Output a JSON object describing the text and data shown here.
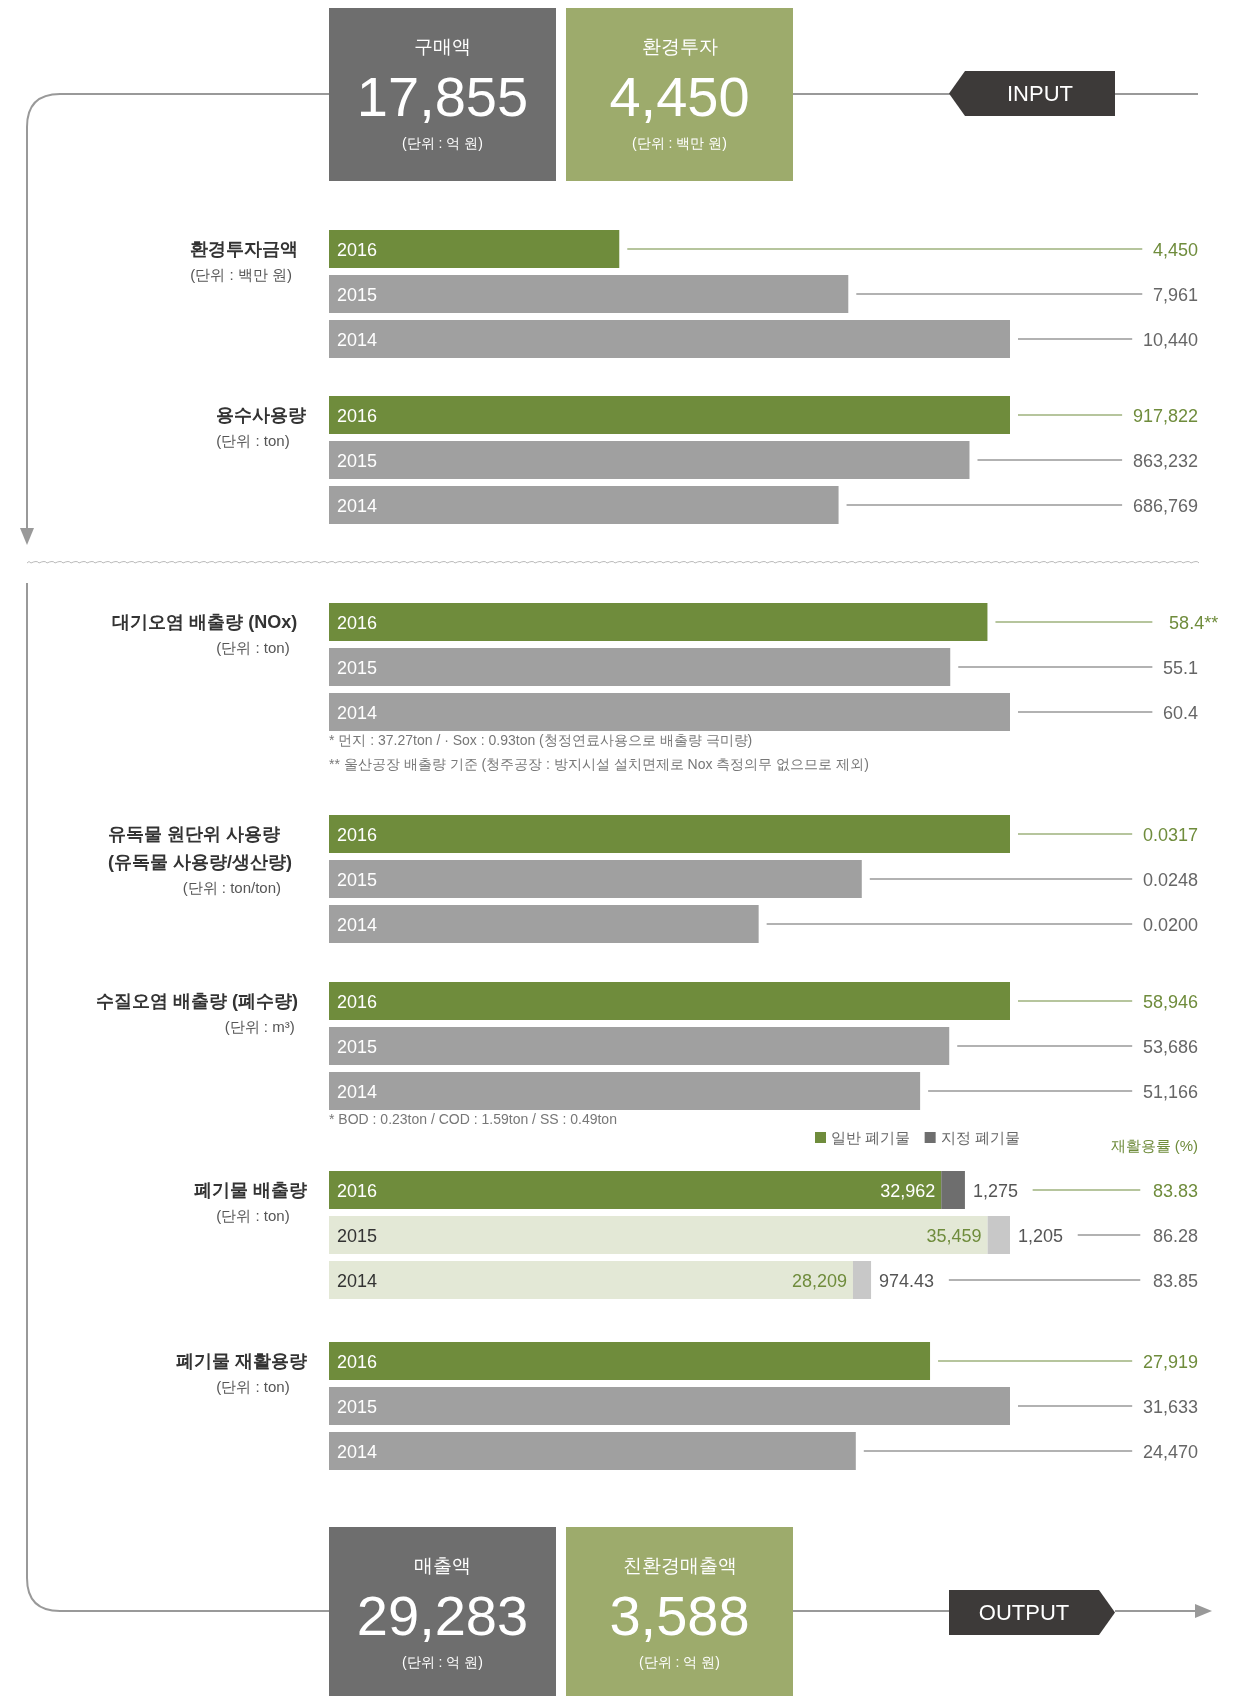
{
  "chart_data": [
    {
      "type": "other",
      "title": "구매액",
      "annotations": [
        "17,855",
        "(단위 : 억 원)"
      ]
    },
    {
      "type": "other",
      "title": "환경투자",
      "annotations": [
        "4,450",
        "(단위 : 백만 원)"
      ]
    },
    {
      "type": "other",
      "annotations": [
        "INPUT"
      ]
    },
    {
      "type": "bar",
      "orientation": "horizontal",
      "title": "환경투자금액",
      "subtitle": "(단위 : 백만 원)",
      "categories": [
        "2016",
        "2015",
        "2014"
      ],
      "values": [
        4450,
        7961,
        10440
      ],
      "colors": [
        "#6f8c3c",
        "#a0a0a0",
        "#a0a0a0"
      ],
      "value_labels": [
        "4,450",
        "7,961",
        "10,440"
      ],
      "xlim": [
        0,
        10440
      ]
    },
    {
      "type": "bar",
      "orientation": "horizontal",
      "title": "용수사용량",
      "subtitle": "(단위 : ton)",
      "categories": [
        "2016",
        "2015",
        "2014"
      ],
      "values": [
        917822,
        863232,
        686769
      ],
      "colors": [
        "#6f8c3c",
        "#a0a0a0",
        "#a0a0a0"
      ],
      "value_labels": [
        "917,822",
        "863,232",
        "686,769"
      ],
      "xlim": [
        0,
        917822
      ]
    },
    {
      "type": "bar",
      "orientation": "horizontal",
      "title": "대기오염 배출량 (NOx)",
      "subtitle": "(단위 : ton)",
      "categories": [
        "2016",
        "2015",
        "2014"
      ],
      "values": [
        58.4,
        55.1,
        60.4
      ],
      "colors": [
        "#6f8c3c",
        "#a0a0a0",
        "#a0a0a0"
      ],
      "value_labels": [
        "58.4**",
        "55.1",
        "60.4"
      ],
      "xlim": [
        0,
        60.4
      ],
      "annotations": [
        "*  먼지 : 37.27ton / · Sox : 0.93ton (청정연료사용으로 배출량 극미량)",
        "** 울산공장 배출량 기준 (청주공장 : 방지시설 설치면제로 Nox 측정의무 없으므로 제외)"
      ]
    },
    {
      "type": "bar",
      "orientation": "horizontal",
      "title": "유독물 원단위 사용량\n(유독물 사용량/생산량)",
      "subtitle": "(단위 : ton/ton)",
      "categories": [
        "2016",
        "2015",
        "2014"
      ],
      "values": [
        0.0317,
        0.0248,
        0.02
      ],
      "colors": [
        "#6f8c3c",
        "#a0a0a0",
        "#a0a0a0"
      ],
      "value_labels": [
        "0.0317",
        "0.0248",
        "0.0200"
      ],
      "xlim": [
        0,
        0.0317
      ]
    },
    {
      "type": "bar",
      "orientation": "horizontal",
      "title": "수질오염 배출량 (폐수량)",
      "subtitle": "(단위 : m³)",
      "categories": [
        "2016",
        "2015",
        "2014"
      ],
      "values": [
        58946,
        53686,
        51166
      ],
      "colors": [
        "#6f8c3c",
        "#a0a0a0",
        "#a0a0a0"
      ],
      "value_labels": [
        "58,946",
        "53,686",
        "51,166"
      ],
      "xlim": [
        0,
        58946
      ],
      "annotations": [
        "* BOD : 0.23ton / COD : 1.59ton / SS : 0.49ton"
      ]
    },
    {
      "type": "bar",
      "orientation": "horizontal",
      "stacked": true,
      "legend": "top right",
      "title": "폐기물 배출량",
      "subtitle": "(단위 : ton)",
      "categories": [
        "2016",
        "2015",
        "2014"
      ],
      "xlim": [
        0,
        36664
      ],
      "series": [
        {
          "name": "일반 폐기물",
          "color": "#6f8c3c",
          "colors": [
            "#6f8c3c",
            "#e3e8d6",
            "#e3e8d6"
          ],
          "values": [
            32962,
            35459,
            28209
          ],
          "value_labels": [
            "32,962",
            "35,459",
            "28,209"
          ]
        },
        {
          "name": "지정 폐기물",
          "color": "#6e6e6e",
          "colors": [
            "#6e6e6e",
            "#c8c8c8",
            "#c8c8c8"
          ],
          "values": [
            1275,
            1205,
            974.43
          ],
          "value_labels": [
            "1,275",
            "1,205",
            "974.43"
          ]
        }
      ],
      "annotations": [
        "재활용률 (%)",
        "83.83",
        "86.28",
        "83.85"
      ]
    },
    {
      "type": "bar",
      "orientation": "horizontal",
      "title": "폐기물 재활용량",
      "subtitle": "(단위 : ton)",
      "categories": [
        "2016",
        "2015",
        "2014"
      ],
      "values": [
        27919,
        31633,
        24470
      ],
      "colors": [
        "#6f8c3c",
        "#a0a0a0",
        "#a0a0a0"
      ],
      "value_labels": [
        "27,919",
        "31,633",
        "24,470"
      ],
      "xlim": [
        0,
        31633
      ]
    },
    {
      "type": "other",
      "title": "매출액",
      "annotations": [
        "29,283",
        "(단위 : 억 원)"
      ]
    },
    {
      "type": "other",
      "title": "친환경매출액",
      "annotations": [
        "3,588",
        "(단위 : 억 원)"
      ]
    },
    {
      "type": "other",
      "annotations": [
        "OUTPUT"
      ]
    }
  ]
}
